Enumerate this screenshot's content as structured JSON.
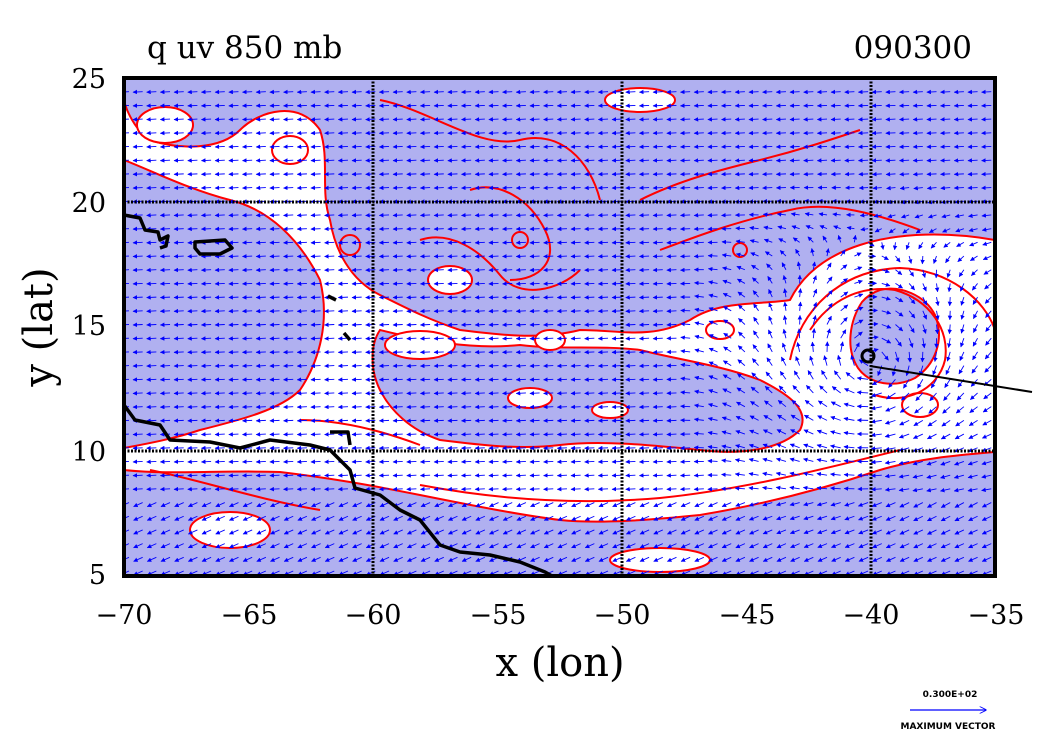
{
  "chart_data": {
    "type": "contour",
    "title": "q uv 850 mb",
    "title_right": "090300",
    "xlabel": "x (lon)",
    "ylabel": "y (lat)",
    "xlim": [
      -70,
      -35
    ],
    "ylim": [
      5,
      25
    ],
    "xticks": [
      -70,
      -65,
      -60,
      -55,
      -50,
      -45,
      -40,
      -35
    ],
    "yticks": [
      5,
      10,
      15,
      20,
      25
    ],
    "xtick_labels": [
      "−70",
      "−65",
      "−60",
      "−55",
      "−50",
      "−45",
      "−40",
      "−35"
    ],
    "ytick_labels": [
      "5",
      "10",
      "15",
      "20",
      "25"
    ],
    "gridlines_x": [
      -60,
      -50,
      -40
    ],
    "gridlines_y": [
      10,
      20
    ],
    "grid": true,
    "fields": [
      "specific humidity q (shaded + red contours)",
      "wind vectors uv (blue arrows)"
    ],
    "colors": {
      "shade": "#b0b0f0",
      "contour": "#ff0000",
      "vector": "#0000ff",
      "coast": "#000000",
      "track": "#000000"
    },
    "storm_center": {
      "lon": -40,
      "lat": 13.6
    },
    "track_line": [
      [
        -40.2,
        13.6
      ],
      [
        -34.9,
        12.5
      ]
    ],
    "vector_legend": {
      "value": "0.300E+02",
      "label": "MAXIMUM VECTOR"
    }
  }
}
